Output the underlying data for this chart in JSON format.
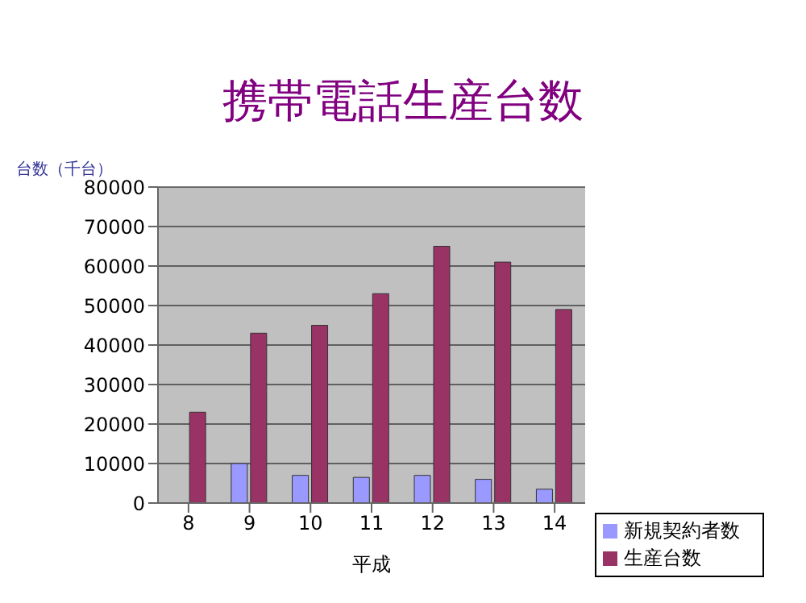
{
  "chart_data": {
    "type": "bar",
    "title": "携帯電話生産台数",
    "xlabel": "平成",
    "ylabel": "台数（千台）",
    "categories": [
      "8",
      "9",
      "10",
      "11",
      "12",
      "13",
      "14"
    ],
    "series": [
      {
        "name": "新規契約者数",
        "color": "#9999ff",
        "values": [
          0,
          10000,
          7000,
          6500,
          7000,
          6000,
          3500
        ]
      },
      {
        "name": "生産台数",
        "color": "#993366",
        "values": [
          23000,
          43000,
          45000,
          53000,
          65000,
          61000,
          49000
        ]
      }
    ],
    "ylim": [
      0,
      80000
    ],
    "yticks": [
      0,
      10000,
      20000,
      30000,
      40000,
      50000,
      60000,
      70000,
      80000
    ],
    "grid": "y",
    "legend": "bottom right"
  }
}
